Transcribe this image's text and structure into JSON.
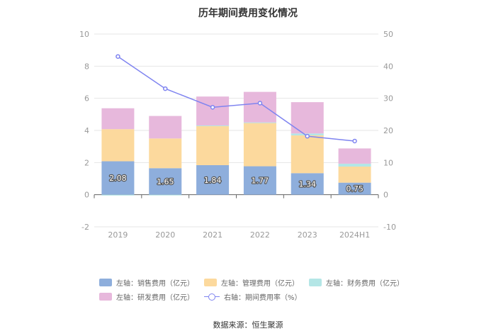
{
  "title": "历年期间费用变化情况",
  "source": "数据来源：恒生聚源",
  "colors": {
    "sales": "#8eaedc",
    "mgmt": "#fcd99d",
    "finance": "#b4e6e6",
    "rd": "#e7b8dc",
    "rate": "#7f84f0",
    "axis_text": "#999999",
    "grid": "#e6e6e6"
  },
  "legend": [
    {
      "key": "sales",
      "label": "左轴：销售费用（亿元）"
    },
    {
      "key": "mgmt",
      "label": "左轴：管理费用（亿元）"
    },
    {
      "key": "finance",
      "label": "左轴：财务费用（亿元）"
    },
    {
      "key": "rd",
      "label": "左轴：研发费用（亿元）"
    },
    {
      "key": "rate",
      "label": "右轴：期间费用率（%）"
    }
  ],
  "chart_data": {
    "type": "bar",
    "stacked": true,
    "categories": [
      "2019",
      "2020",
      "2021",
      "2022",
      "2023",
      "2024H1"
    ],
    "series": [
      {
        "name": "左轴：销售费用（亿元）",
        "axis": "left",
        "values": [
          2.08,
          1.65,
          1.84,
          1.77,
          1.34,
          0.75
        ],
        "labels": [
          "2.08",
          "1.65",
          "1.84",
          "1.77",
          "1.34",
          "0.75"
        ]
      },
      {
        "name": "左轴：管理费用（亿元）",
        "axis": "left",
        "values": [
          2.0,
          1.85,
          2.45,
          2.7,
          2.35,
          1.0
        ]
      },
      {
        "name": "左轴：财务费用（亿元）",
        "axis": "left",
        "values": [
          -0.05,
          -0.02,
          0.02,
          0.03,
          0.12,
          0.18
        ]
      },
      {
        "name": "左轴：研发费用（亿元）",
        "axis": "left",
        "values": [
          1.3,
          1.4,
          1.8,
          1.9,
          1.95,
          0.95
        ]
      },
      {
        "name": "右轴：期间费用率（%）",
        "type": "line",
        "axis": "right",
        "values": [
          43,
          33,
          27.2,
          28.5,
          18.2,
          16.7
        ]
      }
    ],
    "y_left": {
      "min": -2,
      "max": 10,
      "ticks": [
        -2,
        0,
        2,
        4,
        6,
        8,
        10
      ]
    },
    "y_right": {
      "min": -10,
      "max": 50,
      "ticks": [
        -10,
        0,
        10,
        20,
        30,
        40,
        50
      ]
    },
    "grid": true,
    "legend_position": "bottom"
  }
}
